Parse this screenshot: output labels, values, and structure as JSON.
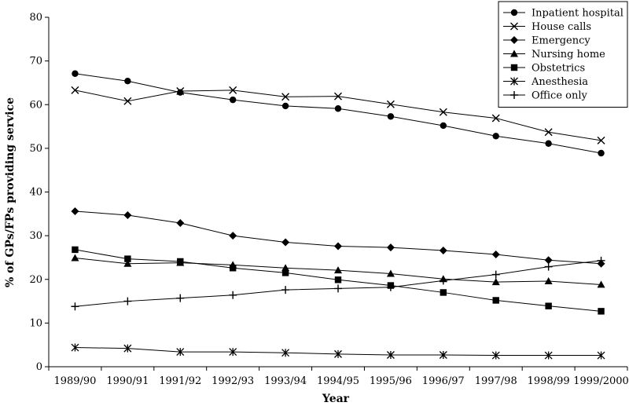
{
  "chart_data": {
    "type": "line",
    "xlabel": "Year",
    "ylabel": "% of GPs/FPs providing service",
    "ylim": [
      0,
      80
    ],
    "yticks": [
      0,
      10,
      20,
      30,
      40,
      50,
      60,
      70,
      80
    ],
    "grid": false,
    "legend_position": "top-right",
    "categories": [
      "1989/90",
      "1990/91",
      "1991/92",
      "1992/93",
      "1993/94",
      "1994/95",
      "1995/96",
      "1996/97",
      "1997/98",
      "1998/99",
      "1999/2000"
    ],
    "series": [
      {
        "name": "Inpatient hospital",
        "marker": "circle",
        "values": [
          67.1,
          65.4,
          62.8,
          61.1,
          59.7,
          59.1,
          57.3,
          55.2,
          52.8,
          51.1,
          48.9
        ]
      },
      {
        "name": "House calls",
        "marker": "x",
        "values": [
          63.3,
          60.8,
          63.1,
          63.3,
          61.8,
          61.9,
          60.1,
          58.3,
          56.9,
          53.7,
          51.8
        ]
      },
      {
        "name": "Emergency",
        "marker": "diamond",
        "values": [
          35.6,
          34.7,
          32.9,
          30.0,
          28.5,
          27.6,
          27.3,
          26.6,
          25.7,
          24.4,
          23.6
        ]
      },
      {
        "name": "Nursing home",
        "marker": "triangle",
        "values": [
          24.9,
          23.6,
          23.8,
          23.3,
          22.6,
          22.1,
          21.3,
          20.1,
          19.4,
          19.6,
          18.8
        ]
      },
      {
        "name": "Obstetrics",
        "marker": "square",
        "values": [
          26.8,
          24.7,
          24.1,
          22.6,
          21.5,
          19.9,
          18.6,
          17.0,
          15.2,
          13.9,
          12.7
        ]
      },
      {
        "name": "Anesthesia",
        "marker": "asterisk",
        "values": [
          4.4,
          4.2,
          3.4,
          3.4,
          3.2,
          2.9,
          2.7,
          2.7,
          2.6,
          2.6,
          2.6
        ]
      },
      {
        "name": "Office only",
        "marker": "plus",
        "values": [
          13.8,
          15.0,
          15.7,
          16.4,
          17.6,
          17.9,
          18.2,
          19.7,
          21.1,
          22.9,
          24.3
        ]
      }
    ]
  }
}
